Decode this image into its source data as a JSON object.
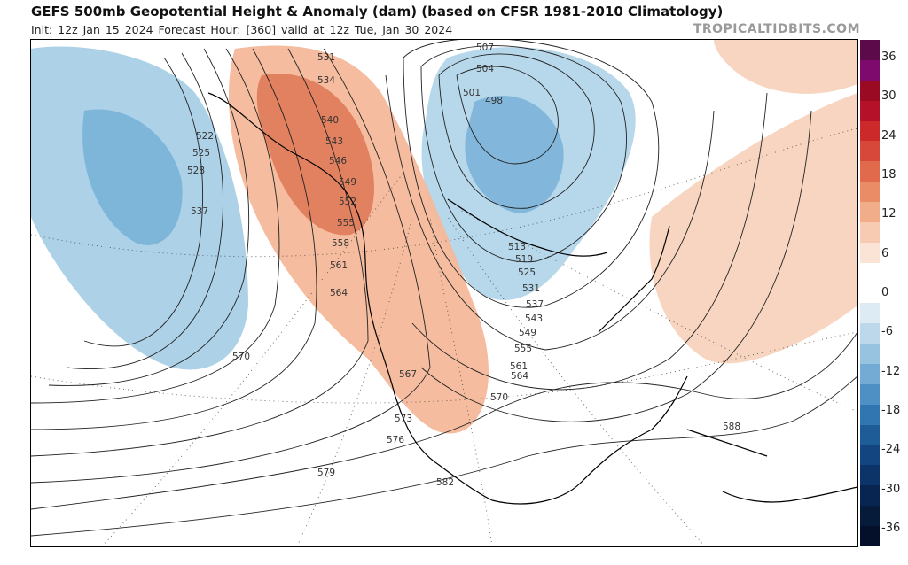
{
  "header": {
    "title": "GEFS 500mb Geopotential Height & Anomaly (dam) (based on CFSR 1981-2010 Climatology)",
    "subtitle": "Init: 12z Jan 15 2024   Forecast Hour: [360]   valid at 12z Tue, Jan 30 2024",
    "brand": "TROPICALTIDBITS.COM"
  },
  "map": {
    "contour_labels": [
      "507",
      "504",
      "501",
      "498",
      "531",
      "534",
      "540",
      "543",
      "546",
      "549",
      "552",
      "555",
      "558",
      "561",
      "564",
      "522",
      "525",
      "528",
      "537",
      "570",
      "567",
      "573",
      "576",
      "579",
      "582",
      "588",
      "513",
      "519",
      "525",
      "531",
      "537",
      "543",
      "549",
      "555",
      "561",
      "564",
      "570"
    ],
    "positive_anomaly_color": "#e8714f",
    "negative_anomaly_color": "#74add4"
  },
  "colorbar": {
    "labels": [
      "36",
      "30",
      "24",
      "18",
      "12",
      "6",
      "0",
      "-6",
      "-12",
      "-18",
      "-24",
      "-30",
      "-36"
    ],
    "colors": [
      "#5c0a4a",
      "#7e0a6e",
      "#9a0a22",
      "#b5122a",
      "#cc2a2a",
      "#d8483a",
      "#e26a4c",
      "#ea8c66",
      "#f1ad8a",
      "#f7cbb2",
      "#fbe4d6",
      "#ffffff",
      "#ffffff",
      "#dcebf4",
      "#bcd8ea",
      "#97c3e0",
      "#73abd4",
      "#4f90c4",
      "#3176b0",
      "#1e5c98",
      "#134680",
      "#0c3468",
      "#082450",
      "#061a3a",
      "#04102a"
    ]
  }
}
